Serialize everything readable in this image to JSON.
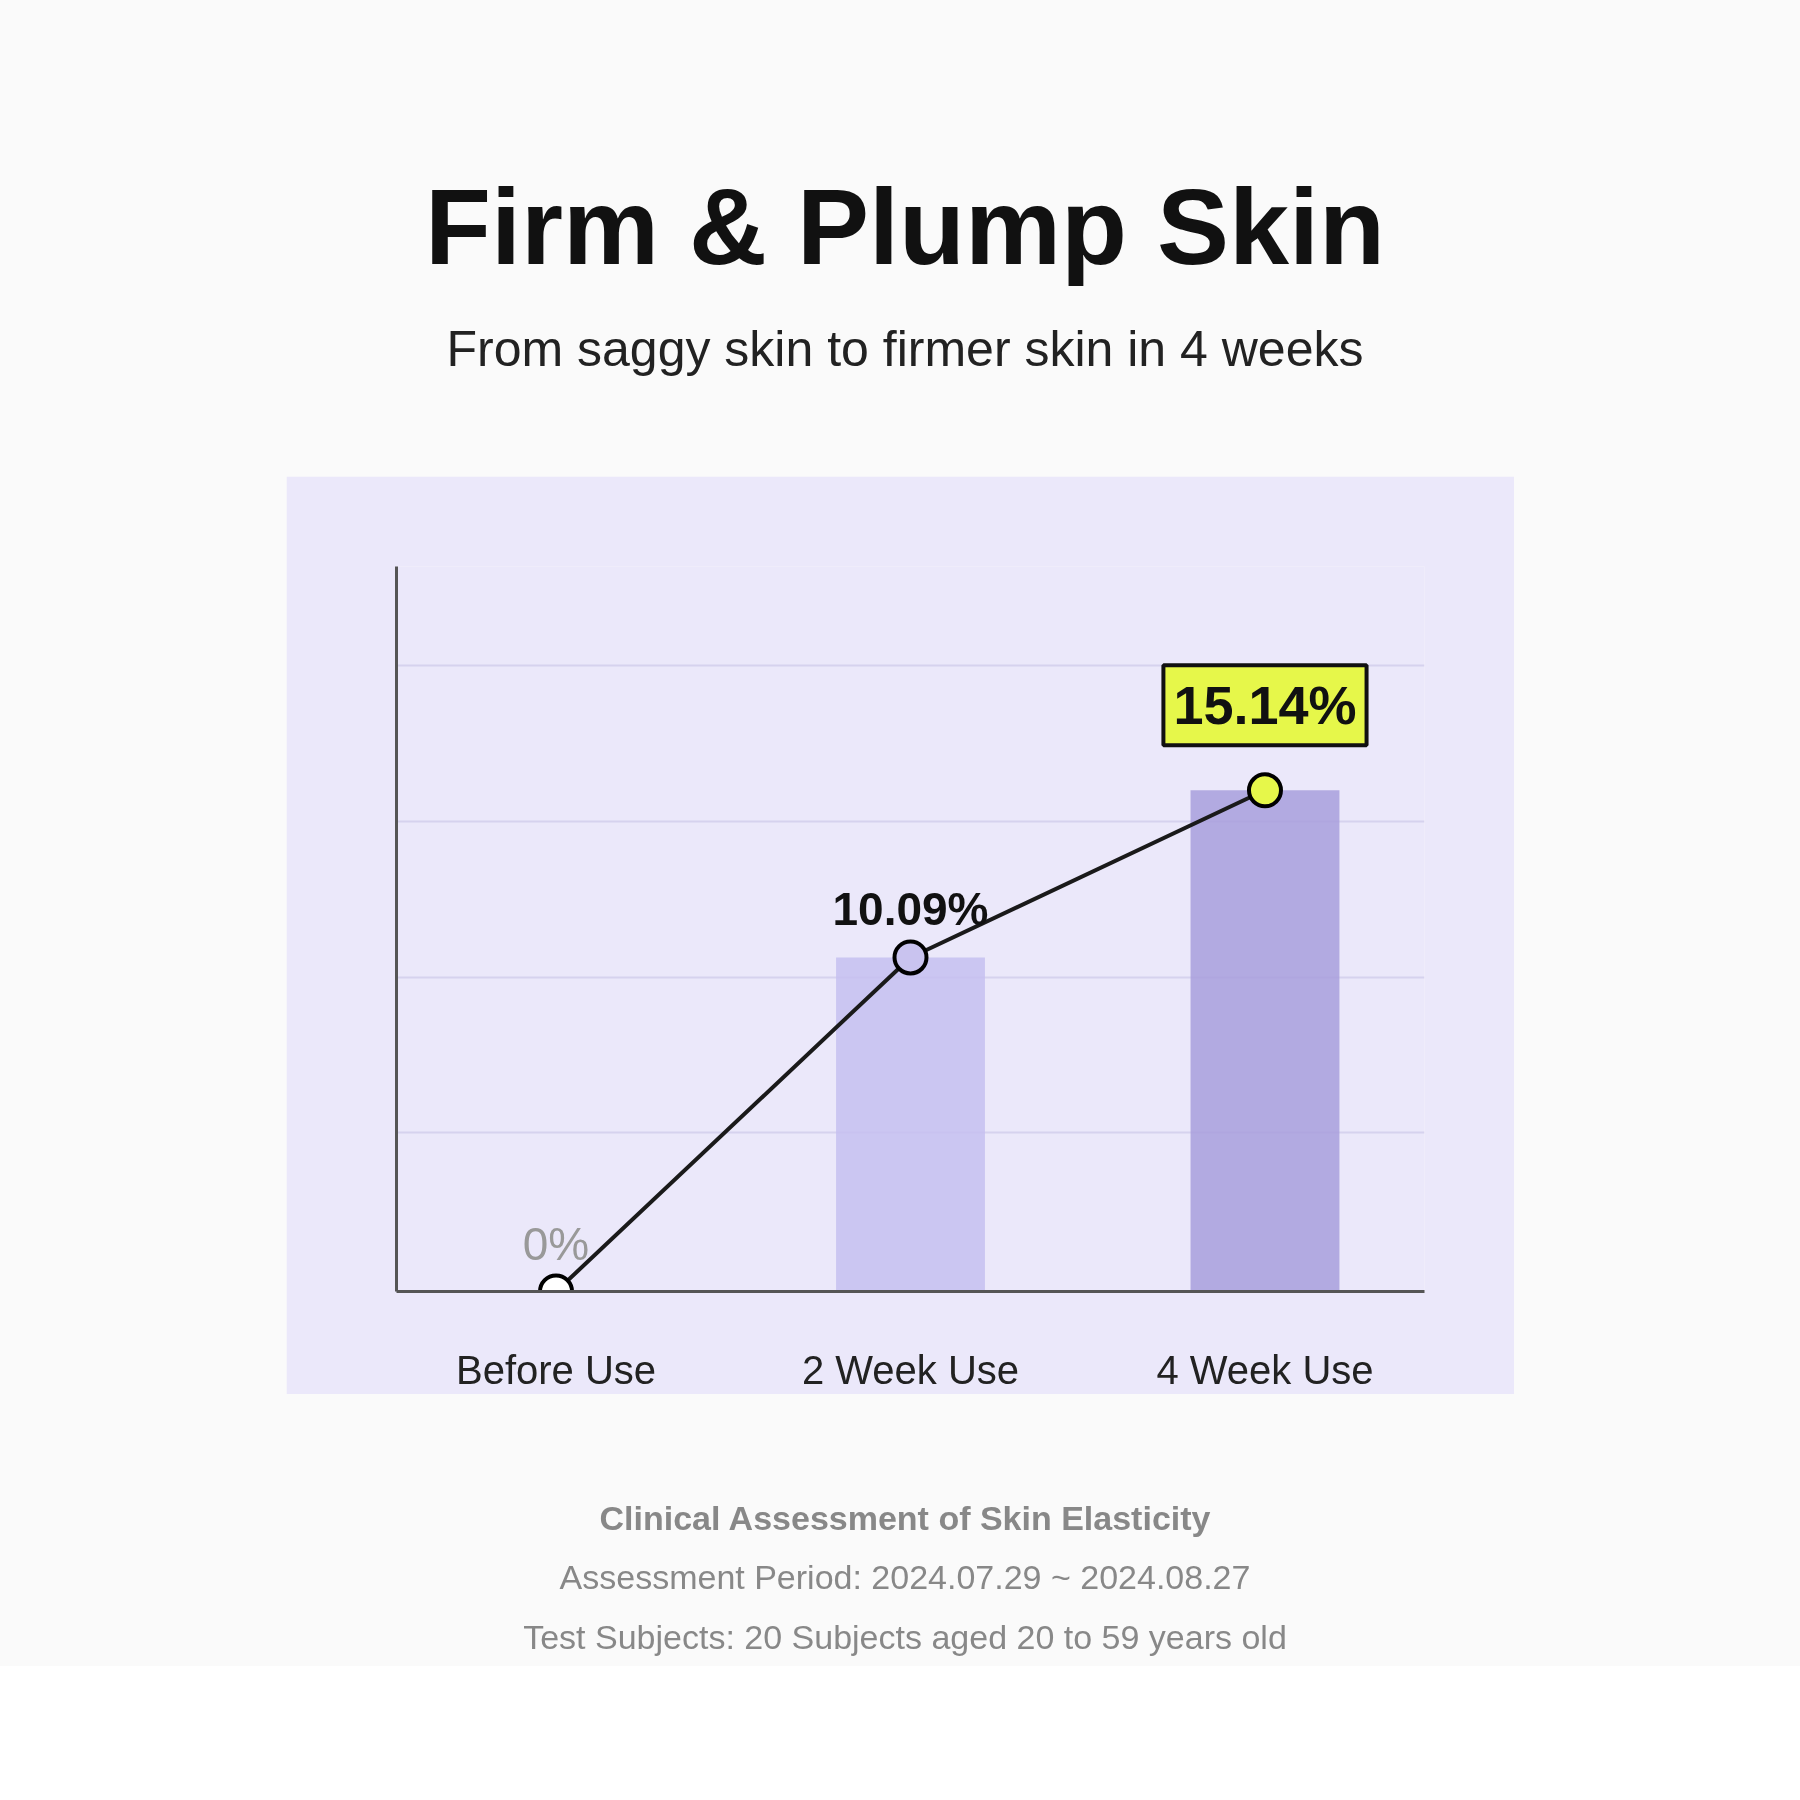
{
  "chart_data": {
    "type": "line",
    "title": "Firm & Plump Skin",
    "subtitle": "From saggy skin to firmer skin in 4 weeks",
    "categories": [
      "Before Use",
      "2 Week Use",
      "4 Week Use"
    ],
    "series": [
      {
        "type": "bar",
        "colors": [
          "#c6bff0",
          "#c6bff0",
          "#a89fdc"
        ],
        "values": [
          0,
          10.09,
          15.14
        ]
      },
      {
        "color": "#1a1a1a",
        "colors": [
          "#ffffff",
          "#c9c3ef",
          "#e6f74a"
        ],
        "values": [
          0,
          10.09,
          15.14
        ],
        "value_labels": [
          "0%",
          "10.09%",
          "15.14%"
        ]
      }
    ],
    "ylim": [
      0,
      21.9
    ],
    "yticks": [
      {
        "value": 4.8,
        "label": null
      },
      {
        "value": 9.5,
        "label": null
      },
      {
        "value": 14.2,
        "label": null
      },
      {
        "value": 18.9,
        "label": null
      }
    ],
    "grid": "y",
    "tick_labels": "x",
    "marker": "circle",
    "line_style": "solid",
    "annotations": [
      "Clinical Assessment of Skin Elasticity",
      "Assessment Period: 2024.07.29 ~ 2024.08.27",
      "Test Subjects: 20 Subjects aged 20 to 59 years old"
    ]
  }
}
